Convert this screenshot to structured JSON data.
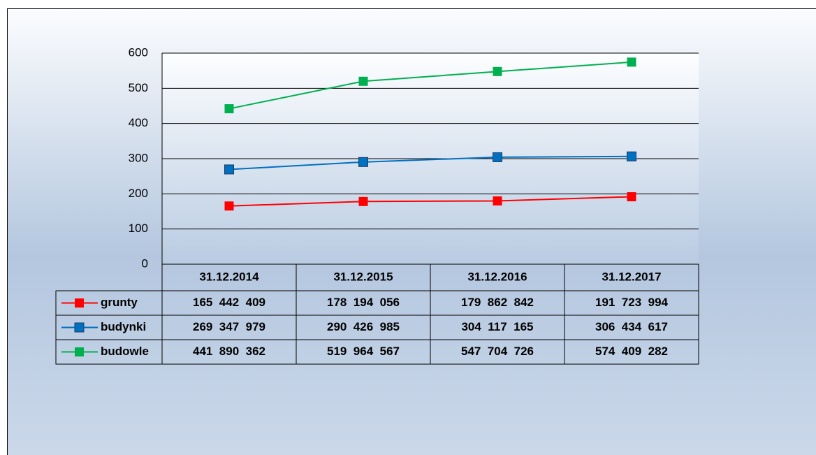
{
  "chart_data": {
    "type": "line",
    "categories": [
      "31.12.2014",
      "31.12.2015",
      "31.12.2016",
      "31.12.2017"
    ],
    "series": [
      {
        "name": "grunty",
        "color": "#ff0000",
        "values": [
          165.442409,
          178.194056,
          179.862842,
          191.723994
        ],
        "value_labels": [
          "165  442  409",
          "178  194  056",
          "179  862  842",
          "191  723  994"
        ]
      },
      {
        "name": "budynki",
        "color": "#0070c0",
        "values": [
          269.347979,
          290.426985,
          304.117165,
          306.434617
        ],
        "value_labels": [
          "269  347  979",
          "290  426  985",
          "304  117  165",
          "306  434  617"
        ]
      },
      {
        "name": "budowle",
        "color": "#00b050",
        "values": [
          441.890362,
          519.964567,
          547.704726,
          574.409282
        ],
        "value_labels": [
          "441  890  362",
          "519  964  567",
          "547  704  726",
          "574  409  282"
        ]
      }
    ],
    "ylim": [
      0,
      600
    ],
    "yticks": [
      0,
      100,
      200,
      300,
      400,
      500,
      600
    ],
    "grid": true
  }
}
